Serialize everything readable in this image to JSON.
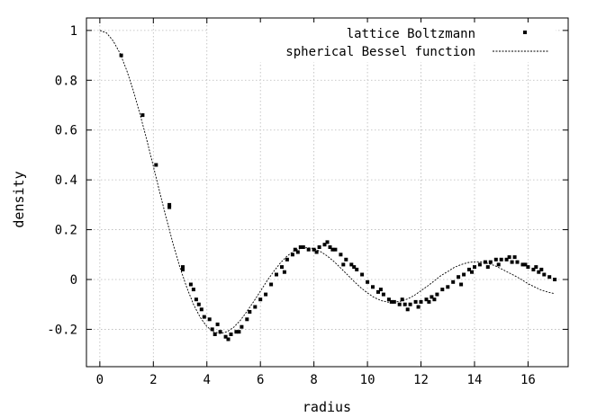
{
  "chart_data": {
    "type": "scatter",
    "xlabel": "radius",
    "ylabel": "density",
    "xlim": [
      -0.5,
      17.5
    ],
    "ylim": [
      -0.35,
      1.05
    ],
    "xticks": [
      0,
      2,
      4,
      6,
      8,
      10,
      12,
      14,
      16
    ],
    "yticks": [
      -0.2,
      0,
      0.2,
      0.4,
      0.6,
      0.8,
      1
    ],
    "ytick_labels": [
      "-0.2",
      "0",
      "0.2",
      "0.4",
      "0.6",
      "0.8",
      "1"
    ],
    "grid": true,
    "legend_position": "top-right",
    "series": [
      {
        "name": "lattice Boltzmann",
        "style": "points",
        "color": "#000000",
        "x": [
          0.8,
          1.6,
          2.1,
          2.6,
          2.6,
          3.1,
          3.1,
          3.4,
          3.5,
          3.6,
          3.7,
          3.8,
          3.9,
          4.1,
          4.2,
          4.3,
          4.5,
          4.7,
          4.9,
          5.1,
          5.3,
          5.5,
          5.6,
          5.8,
          6.0,
          6.2,
          6.4,
          6.6,
          6.8,
          7.0,
          7.2,
          7.4,
          7.6,
          7.8,
          8.0,
          8.2,
          8.4,
          8.5,
          8.6,
          8.8,
          9.0,
          9.2,
          9.4,
          9.6,
          9.8,
          10.0,
          10.2,
          10.4,
          10.6,
          10.8,
          11.0,
          11.2,
          11.4,
          11.6,
          11.8,
          12.0,
          12.2,
          12.4,
          12.6,
          12.8,
          13.0,
          13.2,
          13.4,
          13.6,
          13.8,
          14.0,
          14.2,
          14.4,
          14.6,
          14.8,
          15.0,
          15.2,
          15.4,
          15.6,
          15.8,
          16.0,
          16.2,
          16.4,
          16.6,
          16.8,
          17.0,
          4.4,
          4.8,
          5.2,
          7.5,
          8.1,
          8.7,
          9.5,
          10.5,
          11.5,
          12.5,
          13.5,
          14.5,
          15.5,
          16.5,
          6.9,
          7.3,
          9.1,
          10.9,
          11.3,
          11.9,
          12.3,
          13.9,
          14.9,
          15.3,
          15.9,
          16.3
        ],
        "y": [
          0.9,
          0.66,
          0.46,
          0.3,
          0.29,
          0.05,
          0.04,
          -0.02,
          -0.04,
          -0.08,
          -0.1,
          -0.12,
          -0.15,
          -0.16,
          -0.2,
          -0.22,
          -0.21,
          -0.23,
          -0.22,
          -0.21,
          -0.19,
          -0.16,
          -0.13,
          -0.11,
          -0.08,
          -0.06,
          -0.02,
          0.02,
          0.05,
          0.08,
          0.1,
          0.11,
          0.13,
          0.12,
          0.12,
          0.13,
          0.14,
          0.15,
          0.13,
          0.12,
          0.1,
          0.08,
          0.06,
          0.04,
          0.02,
          -0.01,
          -0.03,
          -0.05,
          -0.06,
          -0.08,
          -0.09,
          -0.1,
          -0.1,
          -0.1,
          -0.09,
          -0.09,
          -0.08,
          -0.07,
          -0.06,
          -0.04,
          -0.03,
          -0.01,
          0.01,
          0.02,
          0.04,
          0.05,
          0.06,
          0.07,
          0.07,
          0.08,
          0.08,
          0.08,
          0.07,
          0.07,
          0.06,
          0.05,
          0.04,
          0.03,
          0.02,
          0.01,
          0.0,
          -0.18,
          -0.24,
          -0.21,
          0.13,
          0.11,
          0.12,
          0.05,
          -0.04,
          -0.12,
          -0.08,
          -0.02,
          0.05,
          0.09,
          0.04,
          0.03,
          0.12,
          0.06,
          -0.09,
          -0.08,
          -0.11,
          -0.09,
          0.03,
          0.06,
          0.09,
          0.06,
          0.05
        ]
      },
      {
        "name": "spherical Bessel function",
        "style": "dashed-line",
        "color": "#000000",
        "x": [
          0,
          0.25,
          0.5,
          0.75,
          1.0,
          1.25,
          1.5,
          1.75,
          2.0,
          2.25,
          2.5,
          2.75,
          3.0,
          3.25,
          3.5,
          3.75,
          4.0,
          4.25,
          4.5,
          4.75,
          5.0,
          5.25,
          5.5,
          5.75,
          6.0,
          6.25,
          6.5,
          6.75,
          7.0,
          7.25,
          7.5,
          7.75,
          8.0,
          8.25,
          8.5,
          8.75,
          9.0,
          9.25,
          9.5,
          9.75,
          10.0,
          10.25,
          10.5,
          10.75,
          11.0,
          11.25,
          11.5,
          11.75,
          12.0,
          12.25,
          12.5,
          12.75,
          13.0,
          13.25,
          13.5,
          13.75,
          14.0,
          14.25,
          14.5,
          14.75,
          15.0,
          15.25,
          15.5,
          15.75,
          16.0,
          16.25,
          16.5,
          16.75,
          17.0
        ],
        "y": [
          1.0,
          0.99,
          0.958,
          0.909,
          0.841,
          0.759,
          0.665,
          0.562,
          0.455,
          0.346,
          0.239,
          0.138,
          0.047,
          -0.033,
          -0.1,
          -0.152,
          -0.189,
          -0.21,
          -0.217,
          -0.21,
          -0.192,
          -0.164,
          -0.128,
          -0.088,
          -0.047,
          -0.005,
          0.033,
          0.067,
          0.094,
          0.114,
          0.125,
          0.128,
          0.124,
          0.112,
          0.094,
          0.072,
          0.046,
          0.019,
          -0.008,
          -0.033,
          -0.054,
          -0.072,
          -0.084,
          -0.091,
          -0.091,
          -0.087,
          -0.078,
          -0.064,
          -0.045,
          -0.026,
          -0.005,
          0.016,
          0.032,
          0.049,
          0.06,
          0.068,
          0.071,
          0.071,
          0.065,
          0.056,
          0.043,
          0.029,
          0.015,
          0.0,
          -0.017,
          -0.03,
          -0.043,
          -0.051,
          -0.057
        ]
      }
    ]
  }
}
